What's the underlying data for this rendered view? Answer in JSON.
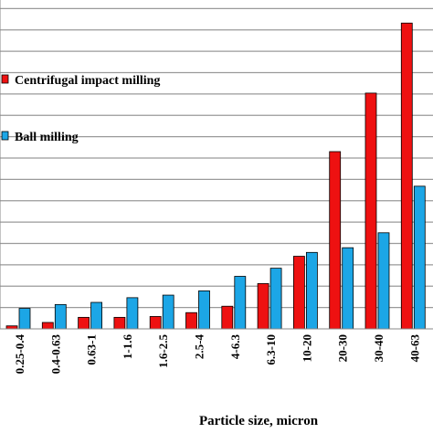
{
  "chart_data": {
    "type": "bar",
    "xlabel": "Particle size, micron",
    "categories": [
      "0.25-0.4",
      "0.4-0.63",
      "0.63-1",
      "1-1.6",
      "1.6-2.5",
      "2.5-4",
      "4-6.3",
      "6.3-10",
      "10-20",
      "20-30",
      "30-40",
      "40-63"
    ],
    "series": [
      {
        "name": "Centrifugal impact milling",
        "color": "#ee1111",
        "values": [
          0.7,
          1.5,
          2.7,
          2.7,
          2.9,
          3.8,
          5.3,
          10.6,
          17.0,
          41.5,
          55.2,
          71.6
        ]
      },
      {
        "name": "Ball milling",
        "color": "#1ca6e6",
        "values": [
          4.8,
          5.7,
          6.2,
          7.3,
          7.9,
          8.9,
          12.3,
          14.2,
          17.9,
          19.0,
          22.5,
          33.4
        ]
      }
    ],
    "ylim": [
      0,
      77
    ],
    "y_gridlines": [
      5,
      10,
      15,
      20,
      25,
      30,
      35,
      40,
      45,
      50,
      55,
      60,
      65,
      70,
      75
    ],
    "grid": true,
    "legend_position": "left"
  }
}
